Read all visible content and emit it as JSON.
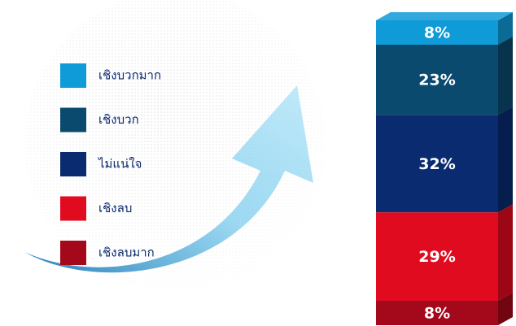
{
  "chart_data": {
    "type": "bar",
    "stacked": true,
    "series": [
      {
        "name": "เชิงบวกมาก",
        "color": "#0f9ad8",
        "values": [
          8
        ],
        "value_labels": [
          "8%"
        ]
      },
      {
        "name": "เชิงบวก",
        "color": "#0b4a6f",
        "values": [
          23
        ],
        "value_labels": [
          "23%"
        ]
      },
      {
        "name": "ไม่แน่ใจ",
        "color": "#0a2b6f",
        "values": [
          32
        ],
        "value_labels": [
          "32%"
        ]
      },
      {
        "name": "เชิงลบ",
        "color": "#e10b1f",
        "values": [
          29
        ],
        "value_labels": [
          "29%"
        ]
      },
      {
        "name": "เชิงลบมาก",
        "color": "#a3091b",
        "values": [
          8
        ],
        "value_labels": [
          "8%"
        ]
      }
    ]
  }
}
